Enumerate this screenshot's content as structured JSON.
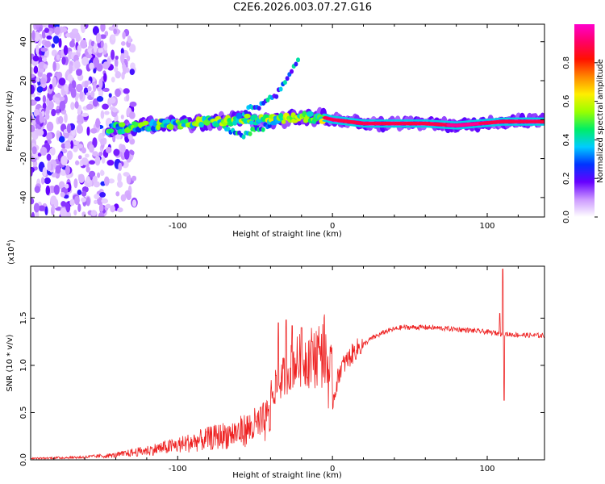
{
  "title": "C2E6.2026.003.07.27.G16",
  "chart_data": [
    {
      "type": "heatmap",
      "xlabel": "Height of straight line (km)",
      "ylabel": "Frequency (Hz)",
      "xlim": [
        -195,
        137
      ],
      "ylim": [
        -50,
        49
      ],
      "xticks": [
        -100,
        0,
        100
      ],
      "xtick_labels": [
        "-100",
        "0",
        "100"
      ],
      "yticks": [
        -40,
        -20,
        0,
        20,
        40
      ],
      "ytick_labels": [
        "-40",
        "-20",
        "0",
        "20",
        "40"
      ],
      "colorbar": {
        "label": "Normalized spectral amplitude",
        "range": [
          0,
          1
        ],
        "ticks": [
          0.0,
          0.2,
          0.4,
          0.6,
          0.8
        ],
        "tick_labels": [
          "0.0",
          "0.2",
          "0.4",
          "0.6",
          "0.8"
        ],
        "colors": [
          "#ffffff",
          "#cc99ff",
          "#6600ff",
          "#0033ff",
          "#00ccff",
          "#00ee66",
          "#99ff00",
          "#ffee00",
          "#ff8800",
          "#ff1100",
          "#ff0066",
          "#ff00cc"
        ]
      },
      "regions": [
        {
          "name": "noise",
          "x_range": [
            -195,
            -128
          ],
          "freq_range": [
            -50,
            49
          ],
          "amplitude": 0.15
        },
        {
          "name": "main-trace",
          "points": [
            [
              -145,
              -5
            ],
            [
              -120,
              -3
            ],
            [
              -100,
              -2
            ],
            [
              -80,
              -1
            ],
            [
              -60,
              0
            ],
            [
              -40,
              0
            ],
            [
              -20,
              1
            ],
            [
              -5,
              1
            ],
            [
              0,
              0
            ],
            [
              20,
              -2
            ],
            [
              60,
              -2
            ],
            [
              80,
              -3
            ],
            [
              95,
              -2
            ],
            [
              110,
              -1
            ],
            [
              137,
              -1
            ]
          ],
          "amplitude": 0.5
        },
        {
          "name": "upper-branch",
          "points": [
            [
              -60,
              3
            ],
            [
              -45,
              8
            ],
            [
              -35,
              14
            ],
            [
              -28,
              22
            ],
            [
              -22,
              32
            ]
          ],
          "amplitude": 0.3
        },
        {
          "name": "lower-branch",
          "points": [
            [
              -70,
              -4
            ],
            [
              -60,
              -8
            ],
            [
              -50,
              -6
            ],
            [
              -40,
              -2
            ],
            [
              -30,
              2
            ]
          ],
          "amplitude": 0.35
        }
      ]
    },
    {
      "type": "line",
      "xlabel": "Height of straight line (km)",
      "ylabel": "SNR (10 * v/v)",
      "multiplier": "(x10",
      "multiplier_exp": "4",
      "multiplier_close": ")",
      "xlim": [
        -195,
        137
      ],
      "ylim": [
        0,
        2.05
      ],
      "xticks": [
        -100,
        0,
        100
      ],
      "xtick_labels": [
        "-100",
        "0",
        "100"
      ],
      "yticks": [
        0.0,
        0.5,
        1.0,
        1.5
      ],
      "ytick_labels": [
        "0.0",
        "0.5",
        "1.0",
        "1.5"
      ],
      "color": "#ee2222",
      "series": [
        {
          "name": "SNR",
          "envelope": [
            [
              -195,
              0.02
            ],
            [
              -160,
              0.04
            ],
            [
              -140,
              0.07
            ],
            [
              -120,
              0.14
            ],
            [
              -100,
              0.22
            ],
            [
              -80,
              0.32
            ],
            [
              -60,
              0.42
            ],
            [
              -45,
              0.55
            ],
            [
              -35,
              0.75
            ],
            [
              -25,
              0.95
            ],
            [
              -15,
              1.0
            ],
            [
              -5,
              1.05
            ],
            [
              0,
              0.6
            ],
            [
              5,
              0.95
            ],
            [
              15,
              1.15
            ],
            [
              25,
              1.28
            ],
            [
              35,
              1.36
            ],
            [
              45,
              1.4
            ],
            [
              60,
              1.4
            ],
            [
              80,
              1.38
            ],
            [
              100,
              1.35
            ],
            [
              110,
              1.33
            ],
            [
              120,
              1.32
            ],
            [
              137,
              1.31
            ]
          ],
          "spikes": [
            [
              -35,
              1.45
            ],
            [
              -30,
              1.48
            ],
            [
              -26,
              1.42
            ],
            [
              -20,
              1.4
            ],
            [
              -13,
              1.25
            ],
            [
              -8,
              1.2
            ],
            [
              110,
              2.02
            ],
            [
              111,
              0.63
            ],
            [
              108,
              1.55
            ]
          ]
        }
      ]
    }
  ]
}
